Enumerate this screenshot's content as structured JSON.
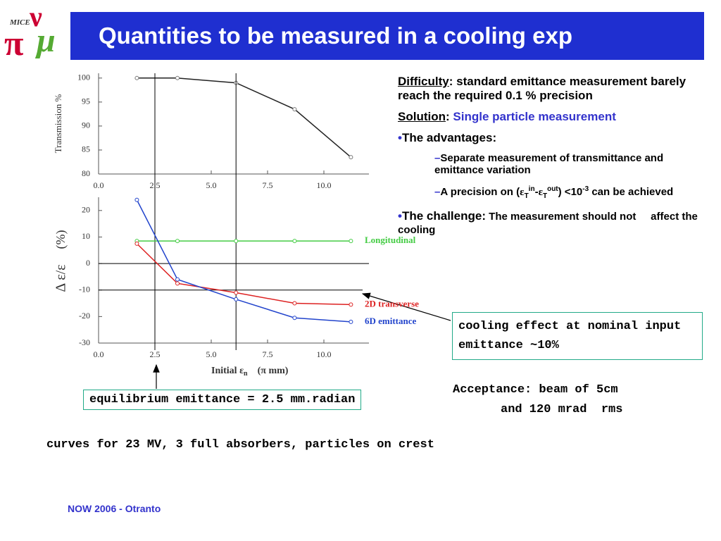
{
  "logo": {
    "label": "MICE",
    "glyphs": [
      "π",
      "ν",
      "μ"
    ]
  },
  "title": "Quantities to be measured in a cooling exp",
  "chart_data": [
    {
      "type": "line",
      "ylabel": "Transmission   %",
      "x": [
        1.7,
        3.5,
        6.1,
        8.7,
        11.2
      ],
      "series": [
        {
          "name": null,
          "color": "#222222",
          "values": [
            100,
            100,
            99,
            93.5,
            83.5
          ]
        }
      ],
      "xlim": [
        0,
        12
      ],
      "ylim": [
        80,
        101
      ],
      "xticks": [
        {
          "value": 0,
          "label": "0.0"
        },
        2.5,
        {
          "value": 5,
          "label": "5.0"
        },
        7.5,
        {
          "value": 10,
          "label": "10.0"
        }
      ],
      "yticks": [
        80,
        85,
        90,
        95,
        100
      ]
    },
    {
      "type": "line",
      "xlabel": [
        "Initial ε",
        "n",
        "(π mm)"
      ],
      "ylabel": [
        "Δ ε/ε",
        "(%)"
      ],
      "x": [
        1.7,
        3.5,
        6.1,
        8.7,
        11.2
      ],
      "series": [
        {
          "name": "Longitudinal",
          "color": "#44cc44",
          "values": [
            8.5,
            8.5,
            8.5,
            8.5,
            8.5
          ]
        },
        {
          "name": "2D transverse",
          "color": "#dd2222",
          "values": [
            7.5,
            -7.5,
            -11,
            -15,
            -15.5
          ]
        },
        {
          "name": "6D emittance",
          "color": "#2244cc",
          "values": [
            24,
            -6,
            -13.5,
            -20.5,
            -22
          ]
        }
      ],
      "xlim": [
        0,
        12
      ],
      "ylim": [
        -30,
        25
      ],
      "xticks": [
        {
          "value": 0,
          "label": "0.0"
        },
        2.5,
        {
          "value": 5,
          "label": "5.0"
        },
        7.5,
        {
          "value": 10,
          "label": "10.0"
        }
      ],
      "yticks": [
        -30,
        -20,
        -10,
        0,
        10,
        20
      ],
      "vlines": [
        2.5,
        6.1
      ],
      "hlines": [
        0,
        -10
      ]
    }
  ],
  "panel": {
    "difficulty": [
      "Difficulty",
      ": standard emittance measurement barely reach the required 0.1 % precision"
    ],
    "solution": [
      "Solution",
      ":",
      "Single particle measurement"
    ],
    "advantages": [
      "•",
      "The advantages:"
    ],
    "adv1": [
      "–",
      "Separate measurement of transmittance and emittance variation"
    ],
    "adv2": [
      "–",
      "A precision on (",
      "ε",
      "T",
      "in",
      "-",
      "ε",
      "T",
      "out",
      ") <10",
      "-3",
      " can be achieved"
    ],
    "challenge": [
      "•",
      "The challenge:",
      " The measurement should not     affect the cooling"
    ]
  },
  "boxes": {
    "cooling": "cooling effect at nominal input emittance ~10%",
    "equilibrium": "equilibrium emittance = 2.5 mm.radian"
  },
  "acceptance": [
    "Acceptance: beam of 5cm",
    "and 120 mrad  rms"
  ],
  "note": "curves for 23 MV, 3 full absorbers, particles on crest",
  "footer": "NOW 2006 - Otranto"
}
